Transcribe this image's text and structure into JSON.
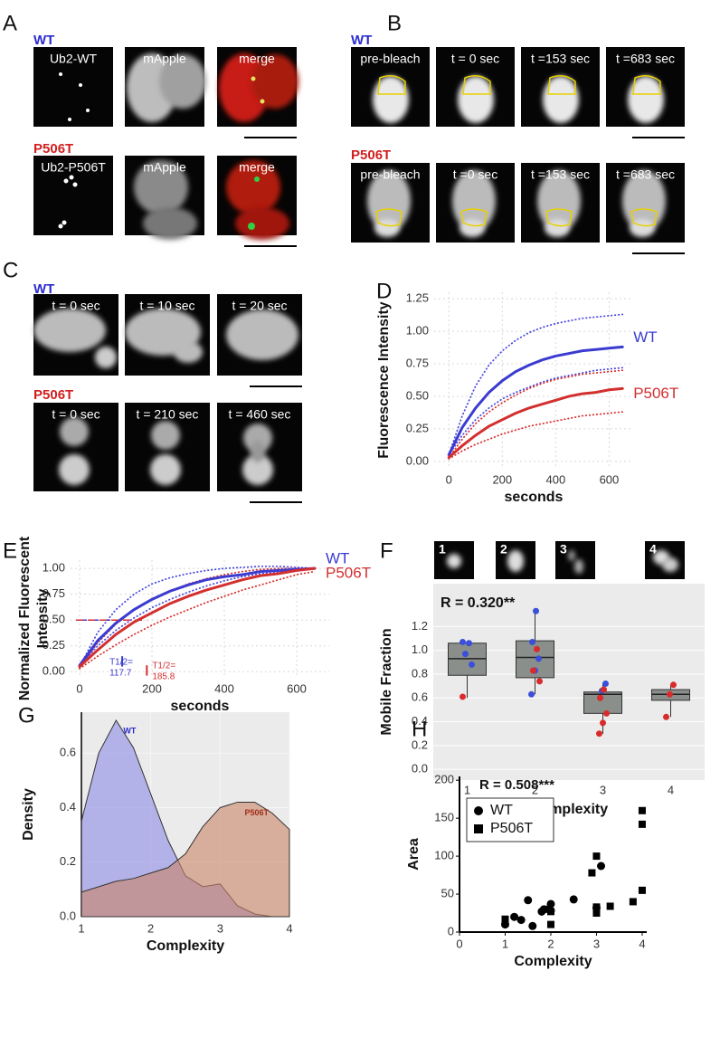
{
  "panels": {
    "A": {
      "label": "A",
      "wt": "WT",
      "mut": "P506T",
      "wt_images": [
        "Ub2-WT",
        "mApple",
        "merge"
      ],
      "mut_images": [
        "Ub2-P506T",
        "mApple",
        "merge"
      ]
    },
    "B": {
      "label": "B",
      "wt": "WT",
      "mut": "P506T",
      "wt_images": [
        "pre-bleach",
        "t = 0 sec",
        "t =153 sec",
        "t =683 sec"
      ],
      "mut_images": [
        "pre-bleach",
        "t =0 sec",
        "t =153 sec",
        "t =683 sec"
      ]
    },
    "C": {
      "label": "C",
      "wt": "WT",
      "mut": "P506T",
      "wt_images": [
        "t = 0 sec",
        "t = 10 sec",
        "t = 20 sec"
      ],
      "mut_images": [
        "t = 0 sec",
        "t = 210 sec",
        "t = 460 sec"
      ]
    },
    "F": {
      "thumbs": [
        "1",
        "2",
        "3",
        "4"
      ]
    }
  },
  "chart_data": [
    {
      "panel": "D",
      "type": "line",
      "xlabel": "seconds",
      "ylabel": [
        "Fluorescence Intensity"
      ],
      "x": [
        0,
        50,
        100,
        150,
        200,
        250,
        300,
        350,
        400,
        450,
        500,
        550,
        600,
        650
      ],
      "xlim": [
        -55,
        690
      ],
      "xticks": [
        0,
        200,
        400,
        600
      ],
      "ylim": [
        -0.05,
        1.3
      ],
      "yticks": [
        {
          "value": 0,
          "label": "0.00"
        },
        {
          "value": 0.25,
          "label": "0.25"
        },
        {
          "value": 0.5,
          "label": "0.50"
        },
        {
          "value": 0.75,
          "label": "0.75"
        },
        {
          "value": 1,
          "label": "1.00"
        },
        {
          "value": 1.25,
          "label": "1.25"
        }
      ],
      "grid": true,
      "series": [
        {
          "color": "#4a4ae0",
          "style": "dotted",
          "values": [
            0.05,
            0.35,
            0.58,
            0.74,
            0.85,
            0.93,
            0.99,
            1.03,
            1.06,
            1.08,
            1.1,
            1.11,
            1.12,
            1.13
          ]
        },
        {
          "color": "#4a4ae0",
          "style": "dotted",
          "values": [
            0.05,
            0.2,
            0.32,
            0.41,
            0.48,
            0.53,
            0.57,
            0.61,
            0.64,
            0.66,
            0.68,
            0.7,
            0.71,
            0.72
          ]
        },
        {
          "color": "#d93030",
          "style": "dotted",
          "values": [
            0.03,
            0.17,
            0.29,
            0.38,
            0.45,
            0.51,
            0.56,
            0.6,
            0.63,
            0.65,
            0.67,
            0.68,
            0.69,
            0.7
          ]
        },
        {
          "color": "#d93030",
          "style": "dotted",
          "values": [
            0.02,
            0.08,
            0.13,
            0.17,
            0.21,
            0.24,
            0.27,
            0.29,
            0.31,
            0.33,
            0.35,
            0.36,
            0.37,
            0.38
          ]
        },
        {
          "name": "WT",
          "color": "#3b3bd1",
          "style": "solid",
          "values": [
            0.05,
            0.26,
            0.41,
            0.53,
            0.62,
            0.69,
            0.74,
            0.78,
            0.81,
            0.83,
            0.85,
            0.86,
            0.87,
            0.88
          ]
        },
        {
          "name": "P506T",
          "color": "#d32f2f",
          "style": "solid",
          "values": [
            0.03,
            0.12,
            0.2,
            0.27,
            0.32,
            0.37,
            0.41,
            0.44,
            0.47,
            0.5,
            0.52,
            0.53,
            0.55,
            0.56
          ]
        }
      ]
    },
    {
      "panel": "E",
      "type": "line",
      "xlabel": "seconds",
      "ylabel": [
        "Normalized Fluorescent",
        "Intensity"
      ],
      "x": [
        0,
        50,
        100,
        150,
        200,
        250,
        300,
        350,
        400,
        450,
        500,
        550,
        600,
        650
      ],
      "xlim": [
        -25,
        690
      ],
      "xticks": [
        0,
        200,
        400,
        600
      ],
      "ylim": [
        -0.05,
        1.08
      ],
      "yticks": [
        {
          "value": 0,
          "label": "0.00"
        },
        {
          "value": 0.25,
          "label": "0.25"
        },
        {
          "value": 0.5,
          "label": "0.50"
        },
        {
          "value": 0.75,
          "label": "0.75"
        },
        {
          "value": 1,
          "label": "1.00"
        }
      ],
      "grid": true,
      "half_level": 0.5,
      "annotations": [
        {
          "text": "T1/2=",
          "x": 117.7,
          "color": "#3b3bd1"
        },
        {
          "text": "T1/2=",
          "x": 185.8,
          "color": "#d32f2f"
        }
      ],
      "series": [
        {
          "color": "#4a4ae0",
          "style": "dotted",
          "values": [
            0.05,
            0.38,
            0.6,
            0.75,
            0.85,
            0.91,
            0.95,
            0.98,
            1.0,
            1.01,
            1.02,
            1.02,
            1.01,
            1.0
          ]
        },
        {
          "color": "#4a4ae0",
          "style": "dotted",
          "values": [
            0.06,
            0.25,
            0.4,
            0.52,
            0.62,
            0.7,
            0.77,
            0.83,
            0.88,
            0.92,
            0.95,
            0.97,
            0.99,
            1.0
          ]
        },
        {
          "color": "#d93030",
          "style": "dotted",
          "values": [
            0.04,
            0.28,
            0.46,
            0.6,
            0.7,
            0.78,
            0.85,
            0.9,
            0.94,
            0.97,
            0.99,
            1.0,
            1.0,
            1.0
          ]
        },
        {
          "color": "#d93030",
          "style": "dotted",
          "values": [
            0.03,
            0.15,
            0.26,
            0.36,
            0.45,
            0.53,
            0.6,
            0.67,
            0.73,
            0.79,
            0.84,
            0.89,
            0.94,
            0.97
          ]
        },
        {
          "name": "WT",
          "color": "#3b3bd1",
          "style": "solid",
          "values": [
            0.06,
            0.3,
            0.47,
            0.6,
            0.7,
            0.78,
            0.84,
            0.89,
            0.92,
            0.94,
            0.97,
            0.98,
            0.99,
            1.0
          ]
        },
        {
          "name": "P506T",
          "color": "#d32f2f",
          "style": "solid",
          "values": [
            0.05,
            0.21,
            0.36,
            0.48,
            0.57,
            0.66,
            0.73,
            0.79,
            0.84,
            0.89,
            0.93,
            0.95,
            0.98,
            1.0
          ]
        }
      ]
    },
    {
      "panel": "F",
      "type": "box",
      "xlabel": "Complexity",
      "ylabel": [
        "Mobile Fraction"
      ],
      "annotation": "R = 0.320**",
      "categories": [
        "1",
        "2",
        "3",
        "4"
      ],
      "ylim": [
        -0.09,
        1.56
      ],
      "yticks": [
        {
          "value": 0,
          "label": "0.0"
        },
        {
          "value": 0.2,
          "label": "0.2"
        },
        {
          "value": 0.4,
          "label": "0.4"
        },
        {
          "value": 0.6,
          "label": "0.6"
        },
        {
          "value": 0.8,
          "label": "0.8"
        },
        {
          "value": 1,
          "label": "1.0"
        },
        {
          "value": 1.2,
          "label": "1.2"
        }
      ],
      "grid": true,
      "color": "#8a8f8c",
      "boxes": [
        {
          "low": 0.6,
          "q1": 0.79,
          "median": 0.93,
          "q3": 1.06,
          "high": 1.08
        },
        {
          "low": 0.63,
          "q1": 0.77,
          "median": 0.94,
          "q3": 1.08,
          "high": 1.33
        },
        {
          "low": 0.3,
          "q1": 0.47,
          "median": 0.63,
          "q3": 0.65,
          "high": 0.72
        },
        {
          "low": 0.44,
          "q1": 0.58,
          "median": 0.63,
          "q3": 0.67,
          "high": 0.71
        }
      ],
      "points": [
        {
          "color": "#3b4fd8",
          "category": [
            "1",
            "1",
            "1",
            "1",
            "2",
            "2",
            "2",
            "2",
            "2",
            "3",
            "3"
          ],
          "values": [
            1.07,
            1.06,
            0.97,
            0.88,
            1.33,
            1.07,
            0.93,
            0.83,
            0.63,
            0.72,
            0.66
          ]
        },
        {
          "color": "#d92b2b",
          "category": [
            "1",
            "2",
            "2",
            "2",
            "3",
            "3",
            "3",
            "3",
            "3",
            "4",
            "4",
            "4"
          ],
          "values": [
            0.61,
            1.01,
            0.83,
            0.74,
            0.67,
            0.6,
            0.47,
            0.39,
            0.3,
            0.71,
            0.63,
            0.44
          ]
        }
      ]
    },
    {
      "panel": "G",
      "type": "area",
      "xlabel": "Complexity",
      "ylabel": [
        "Density"
      ],
      "x": [
        1,
        1.25,
        1.5,
        1.75,
        2,
        2.25,
        2.5,
        2.75,
        3,
        3.25,
        3.5,
        3.75,
        4
      ],
      "xlim": [
        1,
        4
      ],
      "xticks": [
        1,
        2,
        3,
        4
      ],
      "ylim": [
        0,
        0.75
      ],
      "yticks": [
        {
          "value": 0,
          "label": "0.0"
        },
        {
          "value": 0.2,
          "label": "0.2"
        },
        {
          "value": 0.4,
          "label": "0.4"
        },
        {
          "value": 0.6,
          "label": "0.6"
        }
      ],
      "grid": true,
      "series": [
        {
          "name": "WT",
          "color": "#8d8ce6",
          "values": [
            0.35,
            0.6,
            0.72,
            0.62,
            0.45,
            0.28,
            0.15,
            0.11,
            0.12,
            0.04,
            0.01,
            0,
            0
          ]
        },
        {
          "name": "P506T",
          "color": "#c98466",
          "values": [
            0.09,
            0.11,
            0.13,
            0.14,
            0.16,
            0.18,
            0.23,
            0.33,
            0.4,
            0.42,
            0.42,
            0.38,
            0.32
          ]
        }
      ]
    },
    {
      "panel": "H",
      "type": "scatter",
      "xlabel": "Complexity",
      "ylabel": [
        "Area"
      ],
      "annotation": "R = 0.508***",
      "xlim": [
        0,
        4.1
      ],
      "xticks": [
        0,
        1,
        2,
        3,
        4
      ],
      "ylim": [
        0,
        205
      ],
      "yticks": [
        0,
        50,
        100,
        150,
        200
      ],
      "legend": "top-left",
      "series": [
        {
          "name": "WT",
          "marker": "circle",
          "color": "#000000",
          "x": [
            1,
            1.2,
            1.35,
            1.5,
            1.6,
            1.8,
            1.85,
            2,
            2,
            2.5,
            3,
            3.1
          ],
          "values": [
            10,
            20,
            16,
            42,
            8,
            27,
            30,
            37,
            28,
            43,
            32,
            87
          ]
        },
        {
          "name": "P506T",
          "marker": "square",
          "color": "#000000",
          "x": [
            1,
            1.9,
            2,
            2,
            2.9,
            3,
            3,
            3,
            3.3,
            3.8,
            4,
            4,
            4
          ],
          "values": [
            17,
            30,
            10,
            27,
            78,
            100,
            33,
            25,
            34,
            40,
            160,
            142,
            55
          ]
        }
      ]
    }
  ]
}
